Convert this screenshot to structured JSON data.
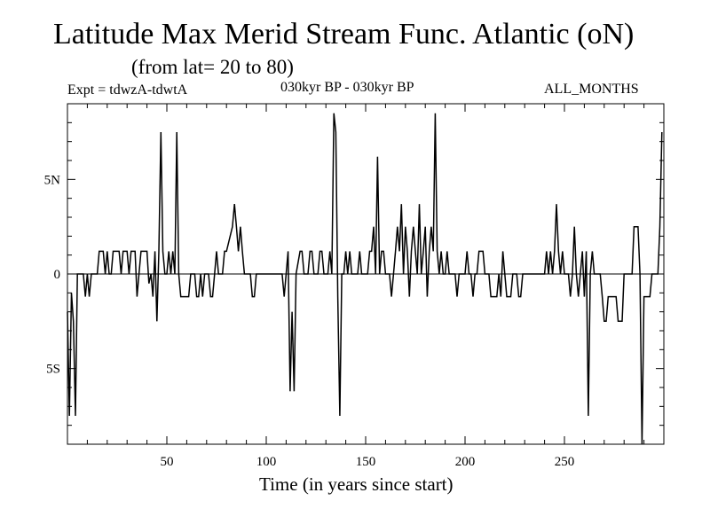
{
  "chart_data": {
    "type": "line",
    "title": "Latitude Max Merid Stream Func. Atlantic (oN)",
    "subtitle": "(from lat= 20 to 80)",
    "annotations": {
      "experiment": "Expt = tdwzA-tdwtA",
      "period": "030kyr BP - 030kyr BP",
      "months": "ALL_MONTHS"
    },
    "xlabel": "Time (in years since start)",
    "ylabel": "",
    "xlim": [
      0,
      300
    ],
    "ylim": [
      -9,
      9
    ],
    "x_ticks": [
      {
        "value": 50,
        "label": "50"
      },
      {
        "value": 100,
        "label": "100"
      },
      {
        "value": 150,
        "label": "150"
      },
      {
        "value": 200,
        "label": "200"
      },
      {
        "value": 250,
        "label": "250"
      }
    ],
    "y_ticks": [
      {
        "value": 5,
        "label": "5N"
      },
      {
        "value": 0,
        "label": "0"
      },
      {
        "value": -5,
        "label": "5S"
      }
    ],
    "zero_line": true,
    "grid": false,
    "series": [
      {
        "color": "#000000",
        "points": [
          [
            0,
            -2
          ],
          [
            1,
            -7.5
          ],
          [
            2,
            -1
          ],
          [
            3,
            -2.5
          ],
          [
            4,
            -7.5
          ],
          [
            5,
            0
          ],
          [
            6,
            0
          ],
          [
            8,
            0
          ],
          [
            9,
            -1.2
          ],
          [
            10,
            0
          ],
          [
            11,
            -1.2
          ],
          [
            12,
            0
          ],
          [
            15,
            0
          ],
          [
            16,
            1.2
          ],
          [
            18,
            1.2
          ],
          [
            19,
            0
          ],
          [
            20,
            1.2
          ],
          [
            21,
            0
          ],
          [
            22,
            0
          ],
          [
            23,
            1.2
          ],
          [
            26,
            1.2
          ],
          [
            27,
            0
          ],
          [
            28,
            1.2
          ],
          [
            30,
            1.2
          ],
          [
            31,
            0
          ],
          [
            32,
            1.2
          ],
          [
            34,
            1.2
          ],
          [
            35,
            -1.2
          ],
          [
            36,
            0
          ],
          [
            37,
            1.2
          ],
          [
            40,
            1.2
          ],
          [
            41,
            -0.5
          ],
          [
            42,
            0
          ],
          [
            43,
            -1.2
          ],
          [
            44,
            1.2
          ],
          [
            45,
            -2.5
          ],
          [
            46,
            1.2
          ],
          [
            47,
            7.5
          ],
          [
            48,
            1.2
          ],
          [
            49,
            0
          ],
          [
            50,
            0
          ],
          [
            51,
            1.2
          ],
          [
            52,
            0
          ],
          [
            53,
            1.2
          ],
          [
            54,
            0
          ],
          [
            55,
            7.5
          ],
          [
            56,
            0
          ],
          [
            57,
            -1.2
          ],
          [
            61,
            -1.2
          ],
          [
            62,
            0
          ],
          [
            64,
            0
          ],
          [
            65,
            -1.2
          ],
          [
            66,
            -1.2
          ],
          [
            67,
            0
          ],
          [
            68,
            -1.2
          ],
          [
            69,
            0
          ],
          [
            71,
            0
          ],
          [
            72,
            -1.2
          ],
          [
            73,
            -1.2
          ],
          [
            74,
            0
          ],
          [
            75,
            1.2
          ],
          [
            76,
            0
          ],
          [
            78,
            0
          ],
          [
            79,
            1.2
          ],
          [
            80,
            1.2
          ],
          [
            83,
            2.5
          ],
          [
            84,
            3.7
          ],
          [
            85,
            2.5
          ],
          [
            86,
            1.2
          ],
          [
            87,
            2.5
          ],
          [
            88,
            1.2
          ],
          [
            89,
            0
          ],
          [
            92,
            0
          ],
          [
            93,
            -1.2
          ],
          [
            94,
            -1.2
          ],
          [
            95,
            0
          ],
          [
            108,
            0
          ],
          [
            109,
            -1.2
          ],
          [
            110,
            0
          ],
          [
            111,
            1.2
          ],
          [
            112,
            -6.2
          ],
          [
            113,
            -2
          ],
          [
            114,
            -6.2
          ],
          [
            115,
            0
          ],
          [
            117,
            1.2
          ],
          [
            118,
            1.2
          ],
          [
            119,
            0
          ],
          [
            121,
            0
          ],
          [
            122,
            1.2
          ],
          [
            123,
            1.2
          ],
          [
            124,
            0
          ],
          [
            126,
            0
          ],
          [
            127,
            1.2
          ],
          [
            128,
            1.2
          ],
          [
            129,
            0
          ],
          [
            131,
            0
          ],
          [
            132,
            1.2
          ],
          [
            133,
            0
          ],
          [
            134,
            8.5
          ],
          [
            135,
            7.5
          ],
          [
            136,
            -1.2
          ],
          [
            137,
            -7.5
          ],
          [
            138,
            0
          ],
          [
            139,
            0
          ],
          [
            140,
            1.2
          ],
          [
            141,
            0
          ],
          [
            142,
            1.2
          ],
          [
            143,
            0
          ],
          [
            146,
            0
          ],
          [
            147,
            1.2
          ],
          [
            148,
            0
          ],
          [
            151,
            0
          ],
          [
            152,
            1.2
          ],
          [
            153,
            1.2
          ],
          [
            154,
            2.5
          ],
          [
            155,
            0
          ],
          [
            156,
            6.2
          ],
          [
            157,
            0
          ],
          [
            158,
            1.2
          ],
          [
            159,
            1.2
          ],
          [
            160,
            0
          ],
          [
            162,
            0
          ],
          [
            163,
            -1.2
          ],
          [
            164,
            0
          ],
          [
            165,
            1.2
          ],
          [
            166,
            2.5
          ],
          [
            167,
            1.2
          ],
          [
            168,
            3.7
          ],
          [
            169,
            0
          ],
          [
            170,
            2.5
          ],
          [
            171,
            1.2
          ],
          [
            172,
            -1.2
          ],
          [
            173,
            1.2
          ],
          [
            174,
            2.5
          ],
          [
            175,
            1.2
          ],
          [
            176,
            0
          ],
          [
            177,
            3.7
          ],
          [
            178,
            0
          ],
          [
            179,
            1.2
          ],
          [
            180,
            2.5
          ],
          [
            181,
            -1.2
          ],
          [
            182,
            1.2
          ],
          [
            183,
            2.5
          ],
          [
            184,
            1.2
          ],
          [
            185,
            8.5
          ],
          [
            186,
            1.2
          ],
          [
            187,
            0
          ],
          [
            188,
            1.2
          ],
          [
            189,
            0
          ],
          [
            190,
            0
          ],
          [
            191,
            1.2
          ],
          [
            192,
            0
          ],
          [
            195,
            0
          ],
          [
            196,
            -1.2
          ],
          [
            197,
            0
          ],
          [
            200,
            0
          ],
          [
            201,
            1.2
          ],
          [
            202,
            0
          ],
          [
            203,
            0
          ],
          [
            204,
            -1.2
          ],
          [
            205,
            0
          ],
          [
            206,
            0
          ],
          [
            207,
            1.2
          ],
          [
            209,
            1.2
          ],
          [
            210,
            0
          ],
          [
            212,
            0
          ],
          [
            213,
            -1.2
          ],
          [
            216,
            -1.2
          ],
          [
            217,
            0
          ],
          [
            218,
            -1.2
          ],
          [
            219,
            1.2
          ],
          [
            220,
            0
          ],
          [
            221,
            -1.2
          ],
          [
            223,
            -1.2
          ],
          [
            224,
            0
          ],
          [
            226,
            0
          ],
          [
            227,
            -1.2
          ],
          [
            228,
            -1.2
          ],
          [
            229,
            0
          ],
          [
            240,
            0
          ],
          [
            241,
            1.2
          ],
          [
            242,
            0
          ],
          [
            243,
            1.2
          ],
          [
            244,
            0
          ],
          [
            245,
            1.2
          ],
          [
            246,
            3.7
          ],
          [
            247,
            1.2
          ],
          [
            248,
            0
          ],
          [
            249,
            1.2
          ],
          [
            250,
            0
          ],
          [
            252,
            0
          ],
          [
            253,
            -1.2
          ],
          [
            254,
            0
          ],
          [
            255,
            2.5
          ],
          [
            256,
            0
          ],
          [
            257,
            -1.2
          ],
          [
            258,
            0
          ],
          [
            259,
            1.2
          ],
          [
            260,
            -1.2
          ],
          [
            261,
            1.2
          ],
          [
            262,
            -7.5
          ],
          [
            263,
            0
          ],
          [
            264,
            1.2
          ],
          [
            265,
            0
          ],
          [
            268,
            0
          ],
          [
            269,
            -1.2
          ],
          [
            270,
            -2.5
          ],
          [
            271,
            -2.5
          ],
          [
            272,
            -1.2
          ],
          [
            276,
            -1.2
          ],
          [
            277,
            -2.5
          ],
          [
            279,
            -2.5
          ],
          [
            280,
            0
          ],
          [
            284,
            0
          ],
          [
            285,
            2.5
          ],
          [
            287,
            2.5
          ],
          [
            288,
            0
          ],
          [
            289,
            -9
          ],
          [
            290,
            -1.2
          ],
          [
            293,
            -1.2
          ],
          [
            294,
            0
          ],
          [
            297,
            0
          ],
          [
            298,
            2.5
          ],
          [
            299,
            7.5
          ]
        ]
      }
    ]
  }
}
